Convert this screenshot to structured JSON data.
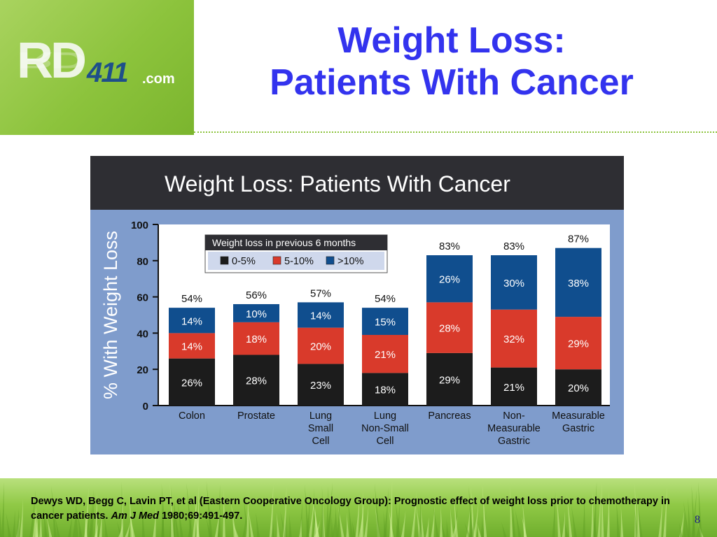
{
  "logo": {
    "rd": "RD",
    "num": "411",
    "com": ".com"
  },
  "slide": {
    "title_line1": "Weight Loss:",
    "title_line2": "Patients With Cancer",
    "page_number": "8"
  },
  "citation": {
    "text": "Dewys WD, Begg C, Lavin PT, et al (Eastern Cooperative Oncology Group): Prognostic effect of weight loss prior to chemotherapy in cancer patients.",
    "journal": "Am J Med",
    "details": "1980;69:491-497."
  },
  "colors": {
    "title": "#3333ee",
    "plot_bg": "#7f9ccc",
    "series_0_5": "#1c1c1c",
    "series_5_10": "#d93a2b",
    "series_gt10": "#104e8e"
  },
  "chart_data": {
    "type": "bar",
    "stacked": true,
    "title": "Weight Loss: Patients With Cancer",
    "ylabel": "% With Weight Loss",
    "ylim": [
      0,
      100
    ],
    "yticks": [
      0,
      20,
      40,
      60,
      80,
      100
    ],
    "legend_title": "Weight loss in previous 6 months",
    "legend_placement": "top-left",
    "categories": [
      [
        "Colon"
      ],
      [
        "Prostate"
      ],
      [
        "Lung",
        "Small",
        "Cell"
      ],
      [
        "Lung",
        "Non-Small",
        "Cell"
      ],
      [
        "Pancreas"
      ],
      [
        "Non-",
        "Measurable",
        "Gastric"
      ],
      [
        "Measurable",
        "Gastric"
      ]
    ],
    "series": [
      {
        "name": "0-5%",
        "color": "#1c1c1c",
        "values": [
          26,
          28,
          23,
          18,
          29,
          21,
          20
        ],
        "labels": [
          "26%",
          "28%",
          "23%",
          "18%",
          "29%",
          "21%",
          "20%"
        ]
      },
      {
        "name": "5-10%",
        "color": "#d93a2b",
        "values": [
          14,
          18,
          20,
          21,
          28,
          32,
          29
        ],
        "labels": [
          "14%",
          "18%",
          "20%",
          "21%",
          "28%",
          "32%",
          "29%"
        ]
      },
      {
        "name": ">10%",
        "color": "#104e8e",
        "values": [
          14,
          10,
          14,
          15,
          26,
          30,
          38
        ],
        "labels": [
          "14%",
          "10%",
          "14%",
          "15%",
          "26%",
          "30%",
          "38%"
        ]
      }
    ],
    "totals": [
      "54%",
      "56%",
      "57%",
      "54%",
      "83%",
      "83%",
      "87%"
    ],
    "total_values": [
      54,
      56,
      57,
      54,
      83,
      83,
      87
    ]
  }
}
